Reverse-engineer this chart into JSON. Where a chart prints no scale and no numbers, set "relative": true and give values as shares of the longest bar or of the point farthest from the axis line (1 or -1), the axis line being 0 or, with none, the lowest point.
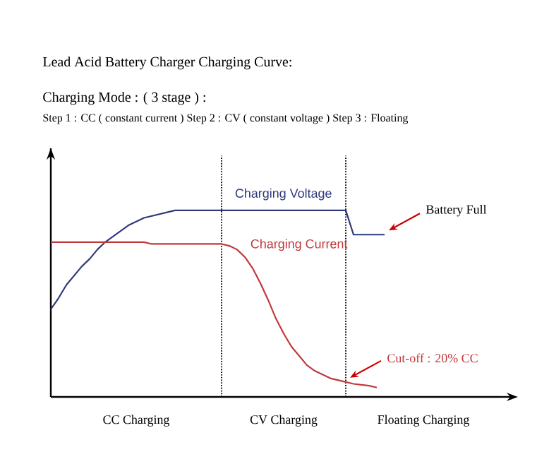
{
  "chart_data": {
    "type": "line",
    "relative": true,
    "title": "Lead Acid Battery Charger Charging Curve:",
    "subtitle": "Charging Mode : ( 3 stage ) :",
    "categories": [
      null,
      null,
      null,
      null,
      null,
      null,
      null,
      null,
      null,
      null,
      null,
      null,
      null,
      null,
      null,
      null,
      null,
      null,
      null,
      null,
      null,
      null,
      null,
      null,
      null,
      null,
      null,
      null,
      null,
      null,
      null,
      null,
      null,
      null,
      null,
      null,
      null,
      null,
      null,
      null,
      null,
      null,
      null,
      null,
      null,
      null,
      null,
      null,
      null,
      null,
      null,
      null,
      null,
      null,
      null,
      null,
      null,
      null,
      null
    ],
    "series": [
      {
        "name": "Charging Voltage",
        "color": "#2e3a7a",
        "values": [
          0.47,
          0.53,
          0.6,
          0.65,
          0.7,
          0.74,
          0.79,
          0.83,
          0.86,
          0.89,
          0.92,
          0.94,
          0.96,
          0.97,
          0.98,
          0.99,
          1.0,
          1.0,
          1.0,
          1.0,
          1.0,
          1.0,
          1.0,
          1.0,
          1.0,
          1.0,
          1.0,
          1.0,
          1.0,
          1.0,
          1.0,
          1.0,
          1.0,
          1.0,
          1.0,
          1.0,
          1.0,
          1.0,
          1.0,
          0.87,
          0.87,
          0.87,
          0.87,
          0.87,
          null,
          null,
          null,
          null,
          null,
          null,
          null,
          null,
          null,
          null,
          null,
          null,
          null,
          null,
          null
        ]
      },
      {
        "name": "Charging Current",
        "color": "#c0393b",
        "values": [
          0.83,
          0.83,
          0.83,
          0.83,
          0.83,
          0.83,
          0.83,
          0.83,
          0.83,
          0.83,
          0.83,
          0.83,
          0.83,
          0.82,
          0.82,
          0.82,
          0.82,
          0.82,
          0.82,
          0.82,
          0.82,
          0.82,
          0.82,
          0.81,
          0.79,
          0.75,
          0.69,
          0.61,
          0.52,
          0.42,
          0.34,
          0.27,
          0.22,
          0.17,
          0.14,
          0.12,
          0.1,
          0.09,
          0.08,
          0.07,
          0.065,
          0.06,
          0.05,
          null,
          null,
          null,
          null,
          null,
          null,
          null,
          null,
          null,
          null,
          null,
          null,
          null,
          null,
          null,
          null
        ]
      }
    ],
    "annotations": [
      "Step 1 : CC ( constant current )   Step 2 : CV ( constant voltage )  Step 3 : Floating",
      "CC Charging",
      "CV Charging",
      "Floating Charging",
      "Battery Full",
      "Cut-off : 20% CC"
    ]
  }
}
